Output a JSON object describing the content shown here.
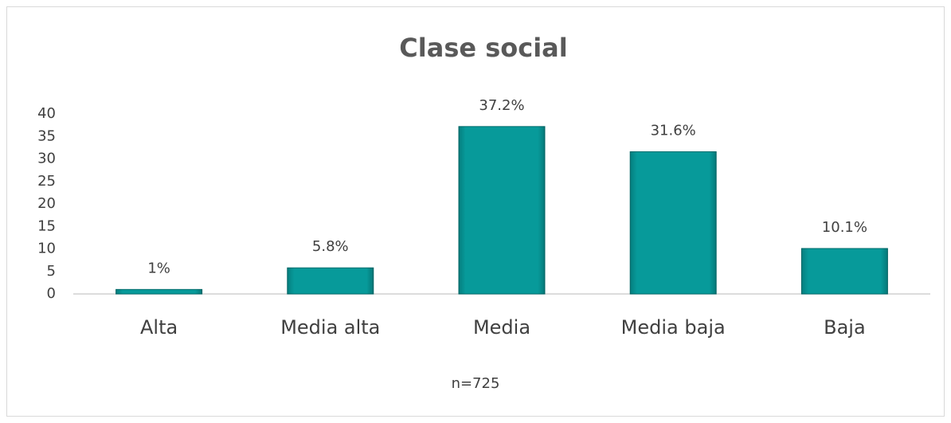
{
  "chart_data": {
    "type": "bar",
    "title": "Clase social",
    "categories": [
      "Alta",
      "Media alta",
      "Media",
      "Media baja",
      "Baja"
    ],
    "values": [
      1,
      5.8,
      37.2,
      31.6,
      10.1
    ],
    "value_labels": [
      "1%",
      "5.8%",
      "37.2%",
      "31.6%",
      "10.1%"
    ],
    "color": "#079a9a",
    "ylim": [
      0,
      40
    ],
    "yticks": [
      0,
      5,
      10,
      15,
      20,
      25,
      30,
      35,
      40
    ],
    "grid": false,
    "note": "n=725"
  }
}
